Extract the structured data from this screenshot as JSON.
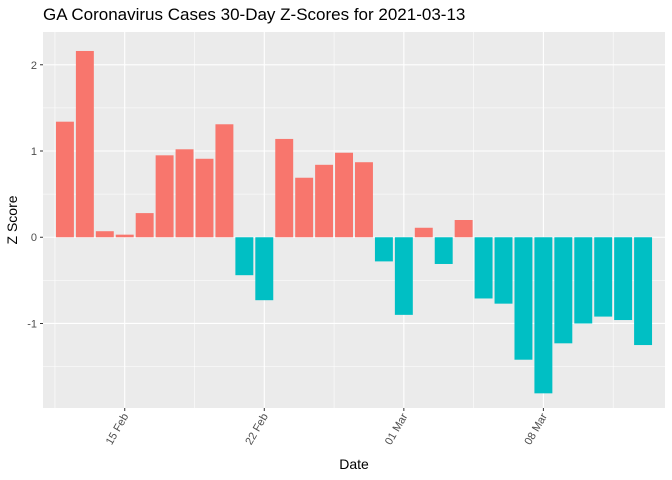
{
  "chart_data": {
    "type": "bar",
    "title": "GA Coronavirus Cases 30-Day Z-Scores for 2021-03-13",
    "xlabel": "Date",
    "ylabel": "Z Score",
    "ylim": [
      -1.98,
      2.38
    ],
    "x_tick_labels": [
      "15 Feb",
      "22 Feb",
      "01 Mar",
      "08 Mar"
    ],
    "y_tick_labels": [
      "-1",
      "0",
      "1",
      "2"
    ],
    "grid": true,
    "colors": {
      "positive": "#F8766D",
      "negative": "#00BFC4",
      "panel": "#EBEBEB",
      "grid": "#FFFFFF"
    },
    "categories": [
      "2021-02-12",
      "2021-02-13",
      "2021-02-14",
      "2021-02-15",
      "2021-02-16",
      "2021-02-17",
      "2021-02-18",
      "2021-02-19",
      "2021-02-20",
      "2021-02-21",
      "2021-02-22",
      "2021-02-23",
      "2021-02-24",
      "2021-02-25",
      "2021-02-26",
      "2021-02-27",
      "2021-02-28",
      "2021-03-01",
      "2021-03-02",
      "2021-03-03",
      "2021-03-04",
      "2021-03-05",
      "2021-03-06",
      "2021-03-07",
      "2021-03-08",
      "2021-03-09",
      "2021-03-10",
      "2021-03-11",
      "2021-03-12",
      "2021-03-13"
    ],
    "values": [
      1.34,
      2.16,
      0.07,
      0.03,
      0.28,
      0.95,
      1.02,
      0.91,
      1.31,
      -0.44,
      -0.73,
      1.14,
      0.69,
      0.84,
      0.98,
      0.87,
      -0.28,
      -0.9,
      0.11,
      -0.31,
      0.2,
      -0.71,
      -0.77,
      -1.42,
      -1.81,
      -1.23,
      -1.0,
      -0.92,
      -0.96,
      -1.25
    ]
  }
}
